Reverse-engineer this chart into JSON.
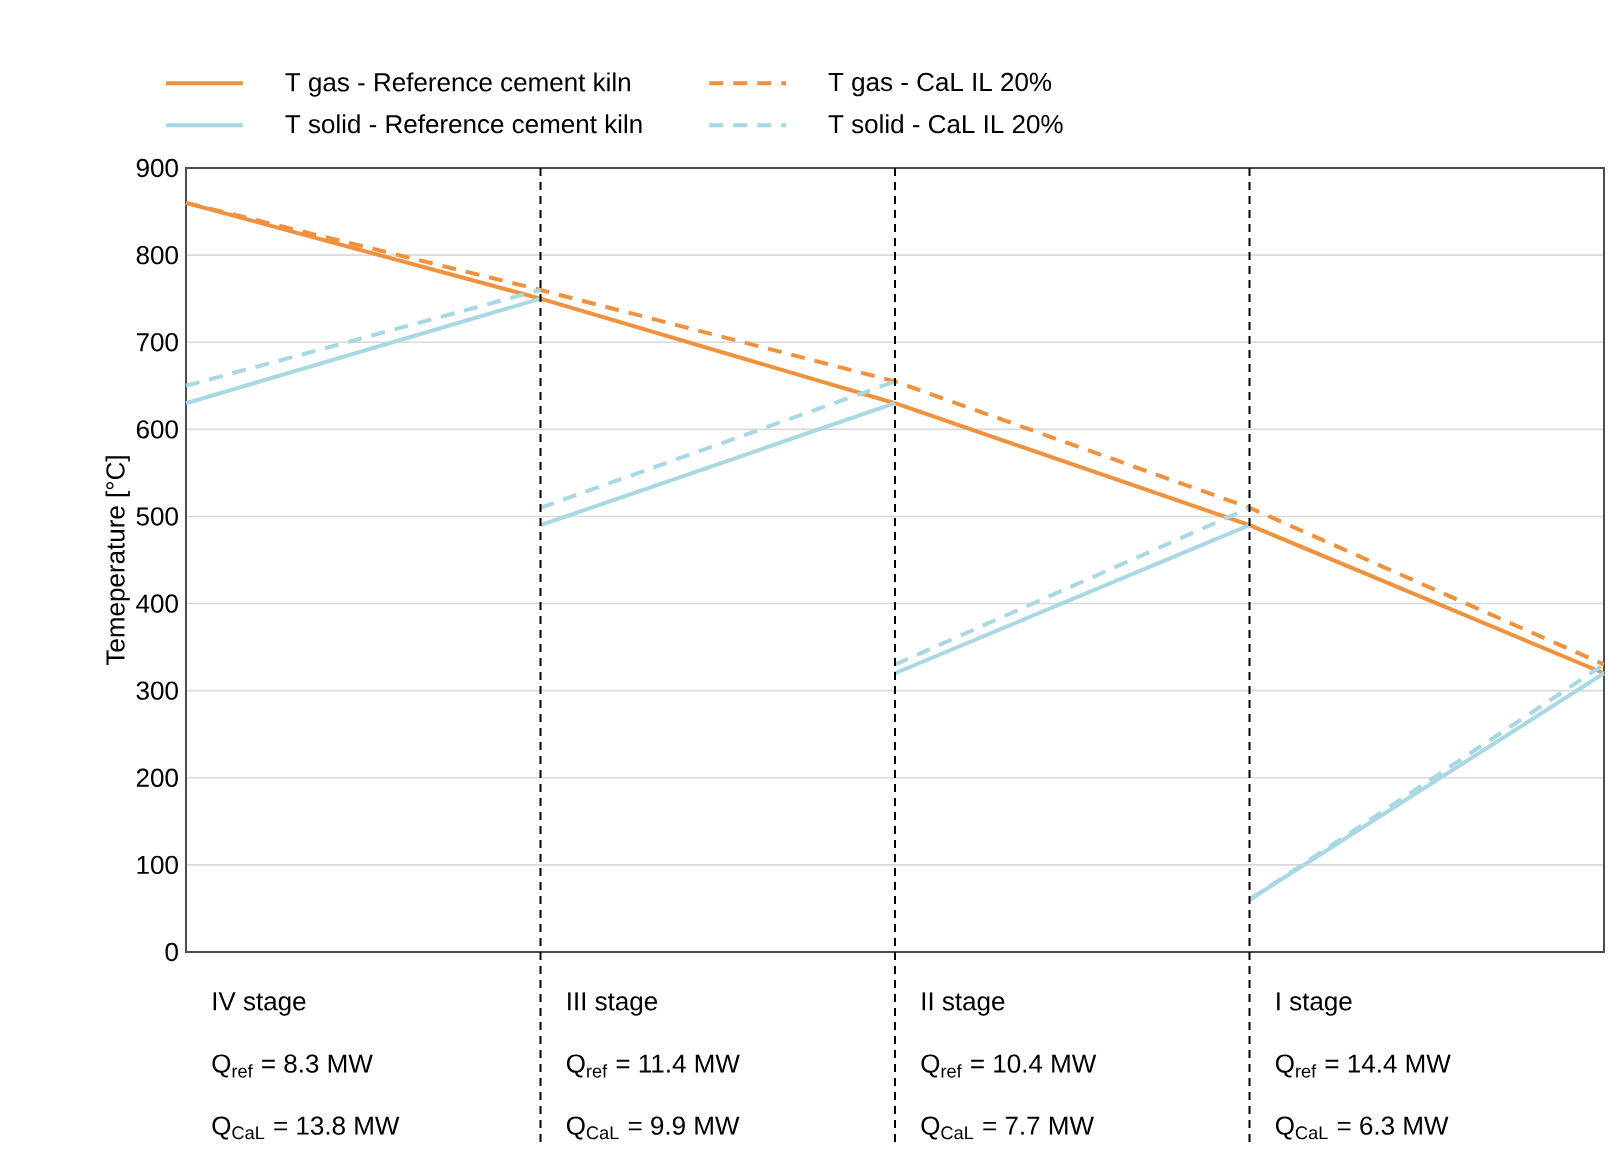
{
  "chart_data": {
    "type": "line",
    "ylabel": "Temeperature [°C]",
    "categories": [
      null,
      null,
      null,
      null,
      null
    ],
    "ylim": [
      0,
      900
    ],
    "yticks": [
      0,
      100,
      200,
      300,
      400,
      500,
      600,
      700,
      800,
      900
    ],
    "tick_labels": "y",
    "grid": true,
    "legend": "top",
    "series": [
      {
        "name": "T gas - Reference cement kiln",
        "color": "#f0913e",
        "line_style": "solid",
        "values": [
          860,
          750,
          630,
          490,
          320
        ]
      },
      {
        "name": "T gas - CaL IL 20%",
        "color": "#f0913e",
        "line_style": "dashed",
        "values": [
          860,
          760,
          655,
          510,
          330
        ]
      },
      {
        "name": "T solid - Reference cement kiln",
        "color": "#a8d8e4",
        "line_style": "solid",
        "values": [
          630,
          750,
          null,
          null,
          null
        ]
      },
      {
        "name": "T solid - CaL IL 20%",
        "color": "#a8d8e4",
        "line_style": "dashed",
        "values": [
          650,
          760,
          null,
          null,
          null
        ]
      },
      {
        "color": "#a8d8e4",
        "line_style": "solid",
        "values": [
          null,
          490,
          630,
          null,
          null
        ]
      },
      {
        "color": "#a8d8e4",
        "line_style": "dashed",
        "values": [
          null,
          510,
          655,
          null,
          null
        ]
      },
      {
        "color": "#a8d8e4",
        "line_style": "solid",
        "values": [
          null,
          null,
          320,
          490,
          null
        ]
      },
      {
        "color": "#a8d8e4",
        "line_style": "dashed",
        "values": [
          null,
          null,
          330,
          510,
          null
        ]
      },
      {
        "color": "#a8d8e4",
        "line_style": "solid",
        "values": [
          null,
          null,
          null,
          60,
          320
        ]
      },
      {
        "color": "#a8d8e4",
        "line_style": "dashed",
        "values": [
          null,
          null,
          null,
          60,
          330
        ]
      }
    ],
    "annotations": [
      "IV stage",
      "Q$_{ref}$ = 8.3 MW",
      "Q$_{CaL}$ = 13.8 MW",
      "III stage",
      "Q$_{ref}$ = 11.4 MW",
      "Q$_{CaL}$ = 9.9 MW",
      "II stage",
      "Q$_{ref}$ = 10.4 MW",
      "Q$_{CaL}$ = 7.7 MW",
      "I stage",
      "Q$_{ref}$ = 14.4 MW",
      "Q$_{CaL}$ = 6.3 MW"
    ]
  }
}
